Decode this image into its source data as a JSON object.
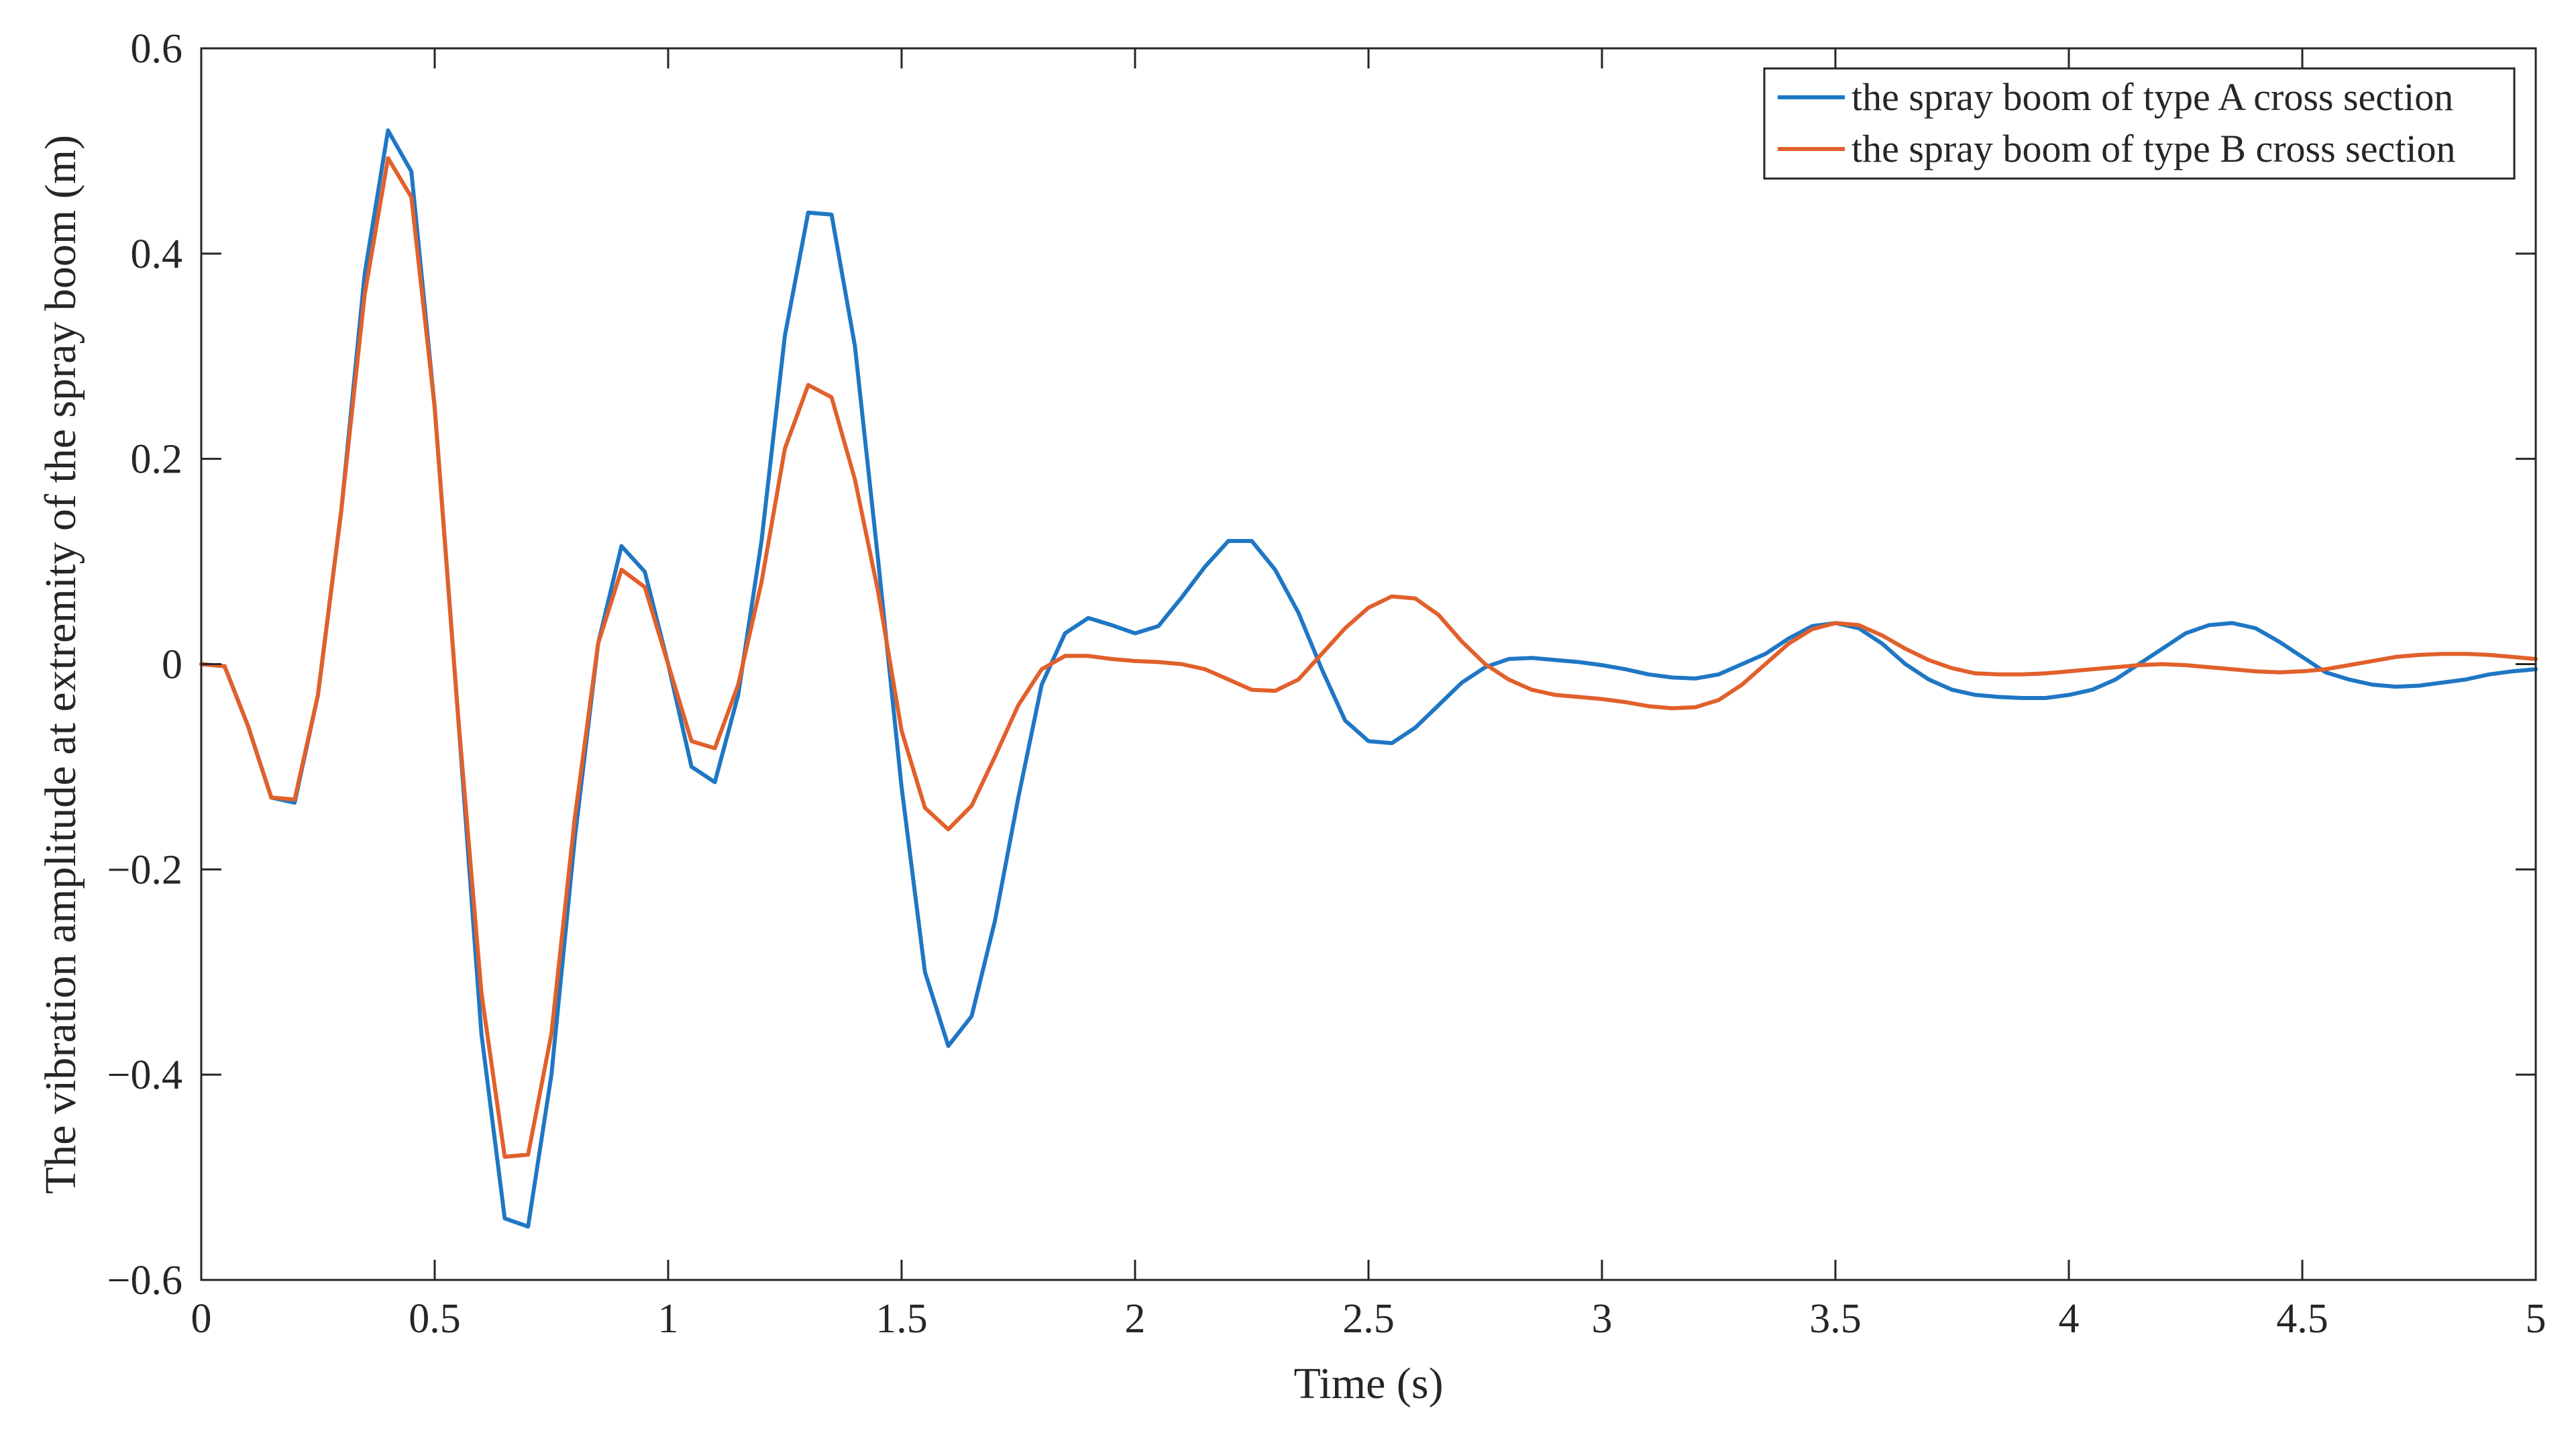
{
  "chart_data": {
    "type": "line",
    "title": "",
    "xlabel": "Time (s)",
    "ylabel": "The vibration amplitude at extremity of the spray boom (m)",
    "xlim": [
      0,
      5
    ],
    "ylim": [
      -0.6,
      0.6
    ],
    "xticks": [
      0,
      0.5,
      1,
      1.5,
      2,
      2.5,
      3,
      3.5,
      4,
      4.5,
      5
    ],
    "xtick_labels": [
      "0",
      "0.5",
      "1",
      "1.5",
      "2",
      "2.5",
      "3",
      "3.5",
      "4",
      "4.5",
      "5"
    ],
    "yticks": [
      -0.6,
      -0.4,
      -0.2,
      0,
      0.2,
      0.4,
      0.6
    ],
    "ytick_labels": [
      "−0.6",
      "−0.4",
      "−0.2",
      "0",
      "0.2",
      "0.4",
      "0.6"
    ],
    "grid": false,
    "legend_position": "top-right",
    "series": [
      {
        "name": "the spray boom of type A cross section",
        "color": "#1f77c4",
        "x": [
          0,
          0.05,
          0.1,
          0.15,
          0.2,
          0.25,
          0.3,
          0.35,
          0.4,
          0.45,
          0.5,
          0.55,
          0.6,
          0.65,
          0.7,
          0.75,
          0.8,
          0.85,
          0.9,
          0.95,
          1.0,
          1.05,
          1.1,
          1.15,
          1.2,
          1.25,
          1.3,
          1.35,
          1.4,
          1.45,
          1.5,
          1.55,
          1.6,
          1.65,
          1.7,
          1.75,
          1.8,
          1.85,
          1.9,
          1.95,
          2.0,
          2.05,
          2.1,
          2.15,
          2.2,
          2.25,
          2.3,
          2.35,
          2.4,
          2.45,
          2.5,
          2.55,
          2.6,
          2.65,
          2.7,
          2.75,
          2.8,
          2.85,
          2.9,
          2.95,
          3.0,
          3.05,
          3.1,
          3.15,
          3.2,
          3.25,
          3.3,
          3.35,
          3.4,
          3.45,
          3.5,
          3.55,
          3.6,
          3.65,
          3.7,
          3.75,
          3.8,
          3.85,
          3.9,
          3.95,
          4.0,
          4.05,
          4.1,
          4.15,
          4.2,
          4.25,
          4.3,
          4.35,
          4.4,
          4.45,
          4.5,
          4.55,
          4.6,
          4.65,
          4.7,
          4.75,
          4.8,
          4.85,
          4.9,
          4.95,
          5.0
        ],
        "y": [
          0,
          -0.002,
          -0.06,
          -0.13,
          -0.135,
          -0.03,
          0.15,
          0.38,
          0.52,
          0.48,
          0.25,
          -0.05,
          -0.36,
          -0.54,
          -0.548,
          -0.4,
          -0.17,
          0.02,
          0.115,
          0.09,
          0.0,
          -0.1,
          -0.115,
          -0.03,
          0.12,
          0.32,
          0.44,
          0.438,
          0.31,
          0.1,
          -0.12,
          -0.3,
          -0.372,
          -0.343,
          -0.25,
          -0.13,
          -0.02,
          0.03,
          0.045,
          0.038,
          0.03,
          0.037,
          0.065,
          0.095,
          0.12,
          0.12,
          0.092,
          0.05,
          -0.005,
          -0.055,
          -0.075,
          -0.077,
          -0.062,
          -0.04,
          -0.018,
          -0.003,
          0.005,
          0.006,
          0.004,
          0.002,
          -0.001,
          -0.005,
          -0.01,
          -0.013,
          -0.014,
          -0.01,
          0.0,
          0.01,
          0.025,
          0.037,
          0.04,
          0.035,
          0.02,
          0.0,
          -0.015,
          -0.025,
          -0.03,
          -0.032,
          -0.033,
          -0.033,
          -0.03,
          -0.025,
          -0.015,
          0.0,
          0.015,
          0.03,
          0.038,
          0.04,
          0.035,
          0.022,
          0.007,
          -0.008,
          -0.015,
          -0.02,
          -0.022,
          -0.021,
          -0.018,
          -0.015,
          -0.01,
          -0.007,
          -0.005
        ]
      },
      {
        "name": "the spray boom of type B cross section",
        "color": "#e1602c",
        "x": [
          0,
          0.05,
          0.1,
          0.15,
          0.2,
          0.25,
          0.3,
          0.35,
          0.4,
          0.45,
          0.5,
          0.55,
          0.6,
          0.65,
          0.7,
          0.75,
          0.8,
          0.85,
          0.9,
          0.95,
          1.0,
          1.05,
          1.1,
          1.15,
          1.2,
          1.25,
          1.3,
          1.35,
          1.4,
          1.45,
          1.5,
          1.55,
          1.6,
          1.65,
          1.7,
          1.75,
          1.8,
          1.85,
          1.9,
          1.95,
          2.0,
          2.05,
          2.1,
          2.15,
          2.2,
          2.25,
          2.3,
          2.35,
          2.4,
          2.45,
          2.5,
          2.55,
          2.6,
          2.65,
          2.7,
          2.75,
          2.8,
          2.85,
          2.9,
          2.95,
          3.0,
          3.05,
          3.1,
          3.15,
          3.2,
          3.25,
          3.3,
          3.35,
          3.4,
          3.45,
          3.5,
          3.55,
          3.6,
          3.65,
          3.7,
          3.75,
          3.8,
          3.85,
          3.9,
          3.95,
          4.0,
          4.05,
          4.1,
          4.15,
          4.2,
          4.25,
          4.3,
          4.35,
          4.4,
          4.45,
          4.5,
          4.55,
          4.6,
          4.65,
          4.7,
          4.75,
          4.8,
          4.85,
          4.9,
          4.95,
          5.0
        ],
        "y": [
          0,
          -0.002,
          -0.06,
          -0.13,
          -0.132,
          -0.03,
          0.15,
          0.36,
          0.493,
          0.455,
          0.25,
          -0.05,
          -0.32,
          -0.48,
          -0.478,
          -0.36,
          -0.15,
          0.02,
          0.092,
          0.075,
          0.0,
          -0.075,
          -0.082,
          -0.02,
          0.08,
          0.21,
          0.272,
          0.26,
          0.18,
          0.07,
          -0.065,
          -0.14,
          -0.161,
          -0.138,
          -0.09,
          -0.04,
          -0.005,
          0.008,
          0.008,
          0.005,
          0.003,
          0.002,
          0.0,
          -0.005,
          -0.015,
          -0.025,
          -0.026,
          -0.015,
          0.01,
          0.035,
          0.055,
          0.066,
          0.064,
          0.048,
          0.022,
          0.0,
          -0.015,
          -0.025,
          -0.03,
          -0.032,
          -0.034,
          -0.037,
          -0.041,
          -0.043,
          -0.042,
          -0.035,
          -0.02,
          0.0,
          0.02,
          0.034,
          0.04,
          0.038,
          0.028,
          0.015,
          0.004,
          -0.004,
          -0.009,
          -0.01,
          -0.01,
          -0.009,
          -0.007,
          -0.005,
          -0.003,
          -0.001,
          0.0,
          -0.001,
          -0.003,
          -0.005,
          -0.007,
          -0.008,
          -0.007,
          -0.005,
          -0.001,
          0.003,
          0.007,
          0.009,
          0.01,
          0.01,
          0.009,
          0.007,
          0.005
        ]
      }
    ]
  }
}
